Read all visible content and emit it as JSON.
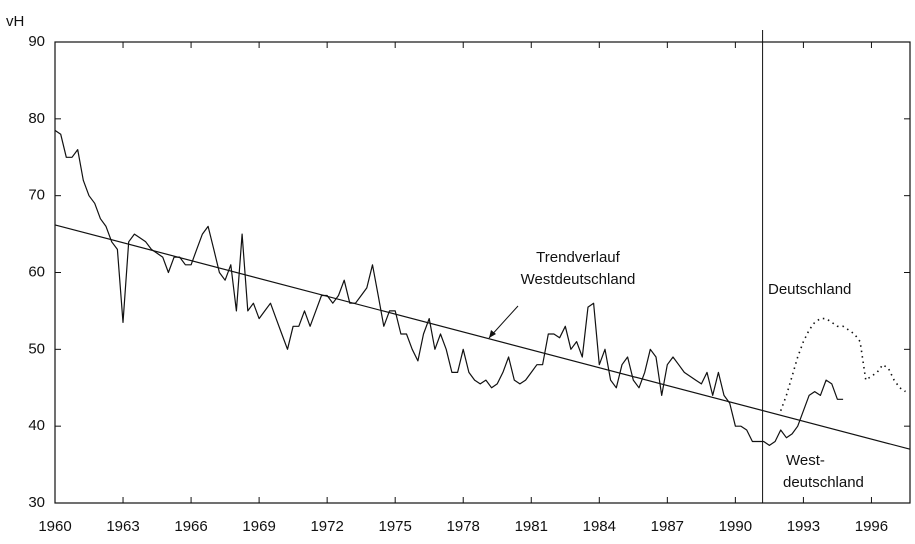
{
  "chart_data": {
    "type": "line",
    "y_label": "vH",
    "xlim": [
      1960,
      1997.7
    ],
    "ylim": [
      30,
      90
    ],
    "xticks": [
      1960,
      1963,
      1966,
      1969,
      1972,
      1975,
      1978,
      1981,
      1984,
      1987,
      1990,
      1993,
      1996
    ],
    "yticks": [
      30,
      40,
      50,
      60,
      70,
      80,
      90
    ],
    "vline": 1991.2,
    "series": [
      {
        "name": "West-deutschland",
        "color": "#111",
        "style": "solid",
        "x": [
          1960,
          1960.25,
          1960.5,
          1960.75,
          1961,
          1961.25,
          1961.5,
          1961.75,
          1962,
          1962.25,
          1962.5,
          1962.75,
          1963,
          1963.25,
          1963.5,
          1963.75,
          1964,
          1964.25,
          1964.5,
          1964.75,
          1965,
          1965.25,
          1965.5,
          1965.75,
          1966,
          1966.25,
          1966.5,
          1966.75,
          1967,
          1967.25,
          1967.5,
          1967.75,
          1968,
          1968.25,
          1968.5,
          1968.75,
          1969,
          1969.25,
          1969.5,
          1969.75,
          1970,
          1970.25,
          1970.5,
          1970.75,
          1971,
          1971.25,
          1971.5,
          1971.75,
          1972,
          1972.25,
          1972.5,
          1972.75,
          1973,
          1973.25,
          1973.5,
          1973.75,
          1974,
          1974.25,
          1974.5,
          1974.75,
          1975,
          1975.25,
          1975.5,
          1975.75,
          1976,
          1976.25,
          1976.5,
          1976.75,
          1977,
          1977.25,
          1977.5,
          1977.75,
          1978,
          1978.25,
          1978.5,
          1978.75,
          1979,
          1979.25,
          1979.5,
          1979.75,
          1980,
          1980.25,
          1980.5,
          1980.75,
          1981,
          1981.25,
          1981.5,
          1981.75,
          1982,
          1982.25,
          1982.5,
          1982.75,
          1983,
          1983.25,
          1983.5,
          1983.75,
          1984,
          1984.25,
          1984.5,
          1984.75,
          1985,
          1985.25,
          1985.5,
          1985.75,
          1986,
          1986.25,
          1986.5,
          1986.75,
          1987,
          1987.25,
          1987.5,
          1987.75,
          1988,
          1988.25,
          1988.5,
          1988.75,
          1989,
          1989.25,
          1989.5,
          1989.75,
          1990,
          1990.25,
          1990.5,
          1990.75,
          1991,
          1991.25,
          1991.5,
          1991.75,
          1992,
          1992.25,
          1992.5,
          1992.75,
          1993,
          1993.25,
          1993.5,
          1993.75,
          1994,
          1994.25,
          1994.5,
          1994.75
        ],
        "values": [
          78.5,
          78,
          75,
          75,
          76,
          72,
          70,
          69,
          67,
          66,
          64,
          63,
          53.5,
          64,
          65,
          64.5,
          64,
          63,
          62.5,
          62,
          60,
          62,
          62,
          61,
          61,
          63,
          65,
          66,
          63,
          60,
          59,
          61,
          55,
          65,
          55,
          56,
          54,
          55,
          56,
          54,
          52,
          50,
          53,
          53,
          55,
          53,
          55,
          57,
          57,
          56,
          57,
          59,
          56,
          56,
          57,
          58,
          61,
          57,
          53,
          55,
          55,
          52,
          52,
          50,
          48.5,
          52,
          54,
          50,
          52,
          50,
          47,
          47,
          50,
          47,
          46,
          45.5,
          46,
          45,
          45.5,
          47,
          49,
          46,
          45.5,
          46,
          47,
          48,
          48,
          52,
          52,
          51.5,
          53,
          50,
          51,
          49,
          55.5,
          56,
          48,
          50,
          46,
          45,
          48,
          49,
          46,
          45,
          47,
          50,
          49,
          44,
          48,
          49,
          48,
          47,
          46.5,
          46,
          45.5,
          47,
          44,
          47,
          44,
          43,
          40,
          40,
          39.5,
          38,
          38,
          38,
          37.5,
          38,
          39.5,
          38.5,
          39,
          40,
          42,
          44,
          44.5,
          44,
          46,
          45.5,
          43.5,
          43.5
        ]
      },
      {
        "name": "Deutschland",
        "color": "#111",
        "style": "dotted",
        "x": [
          1992,
          1992.25,
          1992.5,
          1992.75,
          1993,
          1993.25,
          1993.5,
          1993.75,
          1994,
          1994.25,
          1994.5,
          1994.75,
          1995,
          1995.25,
          1995.5,
          1995.75,
          1996,
          1996.25,
          1996.5,
          1996.75,
          1997,
          1997.25,
          1997.5
        ],
        "values": [
          42,
          44,
          46.5,
          49,
          51,
          52.5,
          53.5,
          54,
          54,
          53.5,
          53,
          53,
          52.5,
          52,
          51,
          46,
          46.5,
          47,
          48,
          47.5,
          46,
          45,
          44.5
        ]
      },
      {
        "name": "Trendverlauf Westdeutschland",
        "color": "#111",
        "style": "solid",
        "x": [
          1960,
          1997.7
        ],
        "values": [
          66.2,
          37
        ]
      }
    ],
    "annotations": [
      "Trendverlauf",
      "Westdeutschland",
      "Deutschland",
      "West-",
      "deutschland"
    ]
  }
}
